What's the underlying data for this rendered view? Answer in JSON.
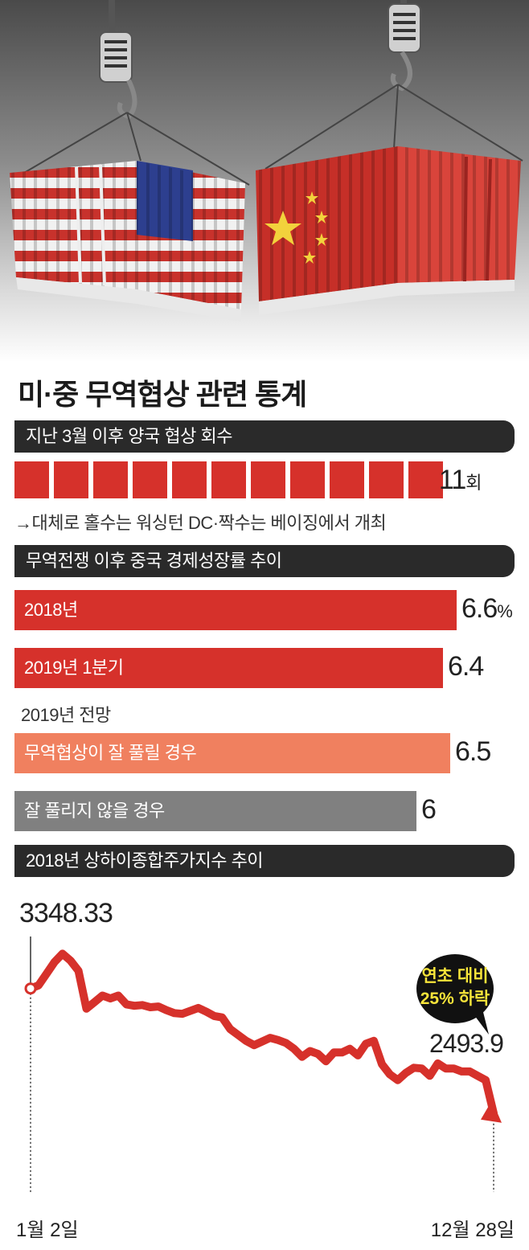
{
  "title": "미·중 무역협상 관련 통계",
  "sections": {
    "rounds": {
      "header": "지난 3월 이후 양국 협상 회수",
      "count": 11,
      "value_label": "11",
      "unit": "회",
      "note": "→대체로 홀수는 워싱턴 DC·짝수는 베이징에서 개최"
    },
    "growth": {
      "header": "무역전쟁 이후 중국 경제성장률 추이",
      "forecast_label": "2019년 전망",
      "unit": "%",
      "bars": [
        {
          "label": "2018년",
          "value": 6.6,
          "value_text": "6.6",
          "color": "#d6312b"
        },
        {
          "label": "2019년 1분기",
          "value": 6.4,
          "value_text": "6.4",
          "color": "#d6312b"
        },
        {
          "label": "무역협상이 잘 풀릴 경우",
          "value": 6.5,
          "value_text": "6.5",
          "color": "#f0805f"
        },
        {
          "label": "잘 풀리지 않을 경우",
          "value": 6,
          "value_text": "6",
          "color": "#808080"
        }
      ]
    },
    "index": {
      "header": "2018년 상하이종합주가지수 추이",
      "start_value": "3348.33",
      "end_value": "2493.9",
      "start_date": "1월 2일",
      "end_date": "12월 28일",
      "callout_line1": "연초 대비",
      "callout_line2": "25% 하락",
      "line_color": "#d6312b"
    }
  },
  "chart_data": [
    {
      "type": "bar",
      "title": "지난 3월 이후 양국 협상 회수",
      "categories": [
        "지난 3월 이후 양국 협상 회수"
      ],
      "values": [
        11
      ],
      "unit": "회"
    },
    {
      "type": "bar",
      "orientation": "horizontal",
      "title": "무역전쟁 이후 중국 경제성장률 추이",
      "categories": [
        "2018년",
        "2019년 1분기",
        "무역협상이 잘 풀릴 경우",
        "잘 풀리지 않을 경우"
      ],
      "values": [
        6.6,
        6.4,
        6.5,
        6
      ],
      "unit": "%"
    },
    {
      "type": "line",
      "title": "2018년 상하이종합주가지수 추이",
      "x_start": "1월 2일",
      "x_end": "12월 28일",
      "ylim": [
        2400,
        3650
      ],
      "y": [
        3348.33,
        3370,
        3450,
        3530,
        3587,
        3540,
        3470,
        3210,
        3255,
        3300,
        3280,
        3300,
        3240,
        3230,
        3235,
        3220,
        3225,
        3200,
        3180,
        3175,
        3195,
        3215,
        3190,
        3160,
        3150,
        3070,
        3030,
        2990,
        2960,
        2985,
        3010,
        2995,
        2975,
        2935,
        2880,
        2920,
        2900,
        2850,
        2910,
        2910,
        2935,
        2890,
        2970,
        2990,
        2830,
        2760,
        2720,
        2770,
        2805,
        2800,
        2750,
        2835,
        2800,
        2800,
        2780,
        2780,
        2750,
        2720,
        2493.9
      ]
    }
  ]
}
